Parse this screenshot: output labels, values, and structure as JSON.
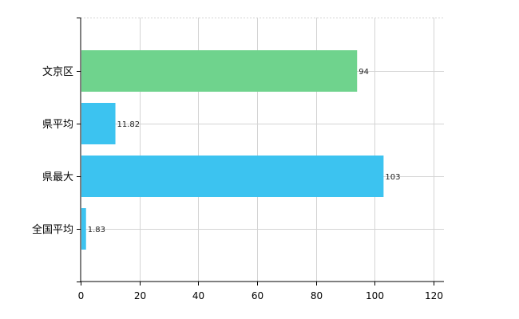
{
  "chart_data": {
    "type": "bar",
    "orientation": "horizontal",
    "categories": [
      "文京区",
      "県平均",
      "県最大",
      "全国平均"
    ],
    "values": [
      94,
      11.82,
      103,
      1.83
    ],
    "value_labels": [
      "94",
      "11.82",
      "103",
      "1.83"
    ],
    "bar_colors": [
      "#6fd38d",
      "#3cc3f0",
      "#3cc3f0",
      "#3cc3f0"
    ],
    "xlim": [
      0,
      120
    ],
    "x_ticks": [
      0,
      20,
      40,
      60,
      80,
      100,
      120
    ],
    "x_tick_labels": [
      "0",
      "20",
      "40",
      "60",
      "80",
      "100",
      "120"
    ],
    "grid": true,
    "title": "",
    "xlabel": "",
    "ylabel": ""
  }
}
